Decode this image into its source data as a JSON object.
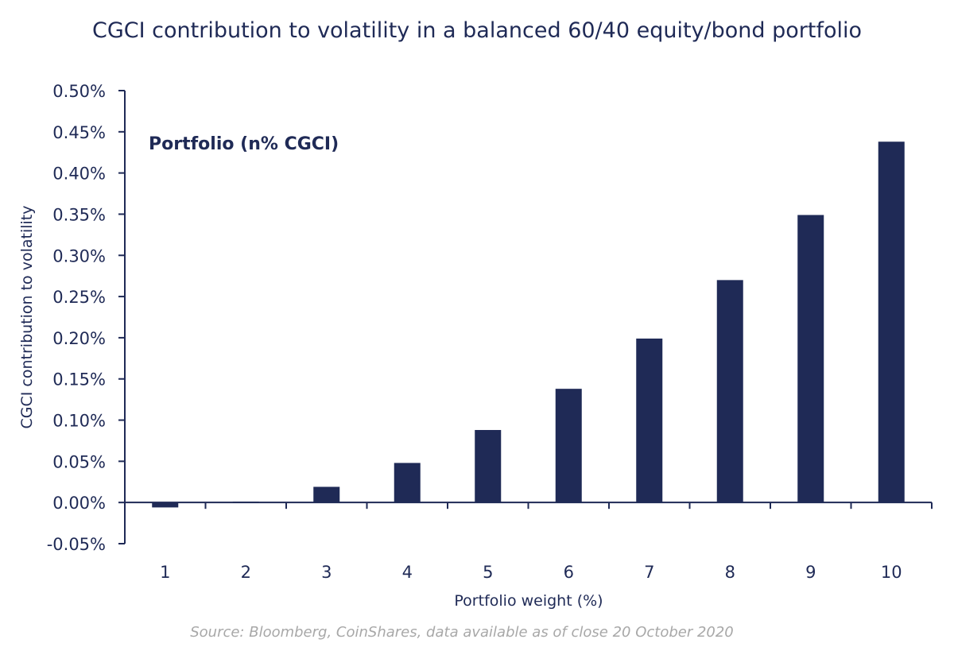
{
  "chart_data": {
    "type": "bar",
    "title": "CGCI contribution to volatility in a balanced 60/40 equity/bond portfolio",
    "xlabel": "Portfolio weight (%)",
    "ylabel": "CGCI contribution to volatility",
    "legend": "Portfolio (n% CGCI)",
    "legend_position": "top-left",
    "categories": [
      "1",
      "2",
      "3",
      "4",
      "5",
      "6",
      "7",
      "8",
      "9",
      "10"
    ],
    "values": [
      -0.006,
      0.001,
      0.019,
      0.048,
      0.088,
      0.138,
      0.199,
      0.27,
      0.349,
      0.438
    ],
    "ylim": [
      -0.05,
      0.5
    ],
    "yticks": [
      -0.05,
      0,
      0.05,
      0.1,
      0.15,
      0.2,
      0.25,
      0.3,
      0.35,
      0.4,
      0.45,
      0.5
    ],
    "ytick_labels": [
      "-0.05%",
      "0.00%",
      "0.05%",
      "0.10%",
      "0.15%",
      "0.20%",
      "0.25%",
      "0.30%",
      "0.35%",
      "0.40%",
      "0.45%",
      "0.50%"
    ],
    "grid": false,
    "bar_color": "#1f2a56",
    "source": "Source: Bloomberg, CoinShares, data available as of close  20 October 2020"
  }
}
